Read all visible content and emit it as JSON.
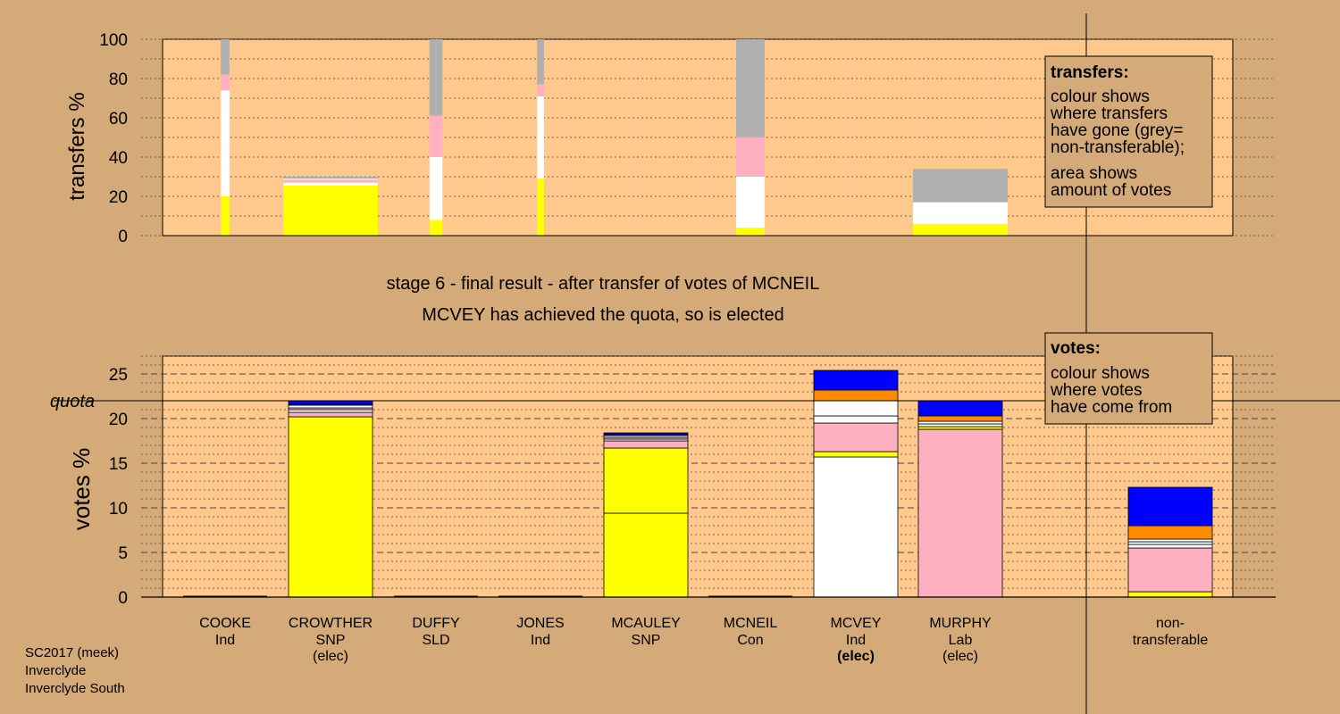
{
  "colors": {
    "background": "#d4aa78",
    "plot_background": "#ffc88c",
    "SNP": "#ffff00",
    "Ind": "#ffffff",
    "Lab": "#ffb0c0",
    "SLD": "#ff8c00",
    "Con": "#0000ff",
    "nontransferable": "#b0b0b0"
  },
  "stage": {
    "line1": "stage 6 - final result - after transfer of votes of MCNEIL",
    "line2": "MCVEY has achieved the quota, so is elected"
  },
  "footer": [
    "SC2017 (meek)",
    "Inverclyde",
    "Inverclyde South"
  ],
  "legend_transfers": {
    "title": "transfers:",
    "text1": [
      "colour shows",
      "where transfers",
      "have gone (grey=",
      "non-transferable);"
    ],
    "text2": [
      "area shows",
      "amount of votes"
    ]
  },
  "legend_votes": {
    "title": "votes:",
    "text": [
      "colour shows",
      "where votes",
      "have come from"
    ]
  },
  "chart_data": [
    {
      "type": "bar",
      "stacked": true,
      "ylabel": "transfers %",
      "ylim": [
        0,
        100
      ],
      "yticks": [
        0,
        20,
        40,
        60,
        80,
        100
      ],
      "grid": "dotted every 10",
      "note": "bar width proportional to amount of votes transferred",
      "bars": [
        {
          "x": 1,
          "width_votes": 0.1,
          "segments": [
            {
              "party": "SNP",
              "value": 20
            },
            {
              "party": "Ind",
              "value": 54
            },
            {
              "party": "Lab",
              "value": 8
            },
            {
              "party": "nontransferable",
              "value": 18
            }
          ]
        },
        {
          "x": 2,
          "width_votes": 1.1,
          "segments": [
            {
              "party": "SNP",
              "value": 25.5
            },
            {
              "party": "Ind",
              "value": 1.5
            },
            {
              "party": "Lab",
              "value": 1.5
            },
            {
              "party": "Ind",
              "value": 0.5
            },
            {
              "party": "nontransferable",
              "value": 1
            }
          ]
        },
        {
          "x": 3,
          "width_votes": 0.15,
          "segments": [
            {
              "party": "SNP",
              "value": 8
            },
            {
              "party": "Ind",
              "value": 32
            },
            {
              "party": "Lab",
              "value": 21
            },
            {
              "party": "nontransferable",
              "value": 39
            }
          ]
        },
        {
          "x": 4,
          "width_votes": 0.08,
          "segments": [
            {
              "party": "SNP",
              "value": 29
            },
            {
              "party": "Ind",
              "value": 42
            },
            {
              "party": "Lab",
              "value": 6
            },
            {
              "party": "nontransferable",
              "value": 23
            }
          ]
        },
        {
          "x": 6,
          "width_votes": 0.33,
          "segments": [
            {
              "party": "SNP",
              "value": 4
            },
            {
              "party": "Ind",
              "value": 26
            },
            {
              "party": "Lab",
              "value": 20
            },
            {
              "party": "nontransferable",
              "value": 50
            }
          ]
        },
        {
          "x": 8,
          "width_votes": 1.1,
          "segments": [
            {
              "party": "SNP",
              "value": 6
            },
            {
              "party": "Ind",
              "value": 11
            },
            {
              "party": "nontransferable",
              "value": 17
            }
          ]
        }
      ]
    },
    {
      "type": "bar",
      "stacked": true,
      "ylabel": "votes %",
      "ylim": [
        0,
        27
      ],
      "yticks": [
        0,
        5,
        10,
        15,
        20,
        25
      ],
      "quota": 22,
      "quota_label": "quota",
      "grid": "dashed every 5, dotted every 1",
      "categories": [
        {
          "name": "COOKE",
          "party": "Ind",
          "status": ""
        },
        {
          "name": "CROWTHER",
          "party": "SNP",
          "status": "(elec)"
        },
        {
          "name": "DUFFY",
          "party": "SLD",
          "status": ""
        },
        {
          "name": "JONES",
          "party": "Ind",
          "status": ""
        },
        {
          "name": "MCAULEY",
          "party": "SNP",
          "status": ""
        },
        {
          "name": "MCNEIL",
          "party": "Con",
          "status": ""
        },
        {
          "name": "MCVEY",
          "party": "Ind",
          "status": "(elec)"
        },
        {
          "name": "MURPHY",
          "party": "Lab",
          "status": "(elec)"
        },
        {
          "name": "",
          "party": "",
          "status": ""
        },
        {
          "name": "non-",
          "party": "transferable",
          "status": ""
        }
      ],
      "stacks": [
        [],
        [
          {
            "party": "SNP",
            "value": 20.2
          },
          {
            "party": "Lab",
            "value": 0.5
          },
          {
            "party": "Ind",
            "value": 0.3
          },
          {
            "party": "Lab",
            "value": 0.2
          },
          {
            "party": "Ind",
            "value": 0.3
          },
          {
            "party": "SLD",
            "value": 0.1
          },
          {
            "party": "Con",
            "value": 0.4
          }
        ],
        [],
        [],
        [
          {
            "party": "SNP",
            "value": 9.4
          },
          {
            "party": "SNP",
            "value": 7.3
          },
          {
            "party": "Lab",
            "value": 0.8
          },
          {
            "party": "Ind",
            "value": 0.2
          },
          {
            "party": "Lab",
            "value": 0.2
          },
          {
            "party": "Ind",
            "value": 0.2
          },
          {
            "party": "SLD",
            "value": 0.1
          },
          {
            "party": "Con",
            "value": 0.2
          }
        ],
        [],
        [
          {
            "party": "Ind",
            "value": 15.7
          },
          {
            "party": "SNP",
            "value": 0.6
          },
          {
            "party": "Lab",
            "value": 3.2
          },
          {
            "party": "Ind",
            "value": 0.8
          },
          {
            "party": "Ind",
            "value": 1.7
          },
          {
            "party": "SLD",
            "value": 1.2
          },
          {
            "party": "Con",
            "value": 2.2
          }
        ],
        [
          {
            "party": "Lab",
            "value": 18.8
          },
          {
            "party": "SNP",
            "value": 0.3
          },
          {
            "party": "Ind",
            "value": 0.3
          },
          {
            "party": "Ind",
            "value": 0.3
          },
          {
            "party": "SLD",
            "value": 0.6
          },
          {
            "party": "Con",
            "value": 1.7
          }
        ],
        [],
        [
          {
            "party": "SNP",
            "value": 0.6
          },
          {
            "party": "Lab",
            "value": 4.9
          },
          {
            "party": "Ind",
            "value": 0.4
          },
          {
            "party": "Ind",
            "value": 0.3
          },
          {
            "party": "Ind",
            "value": 0.3
          },
          {
            "party": "SLD",
            "value": 1.5
          },
          {
            "party": "Con",
            "value": 4.3
          }
        ]
      ]
    }
  ]
}
